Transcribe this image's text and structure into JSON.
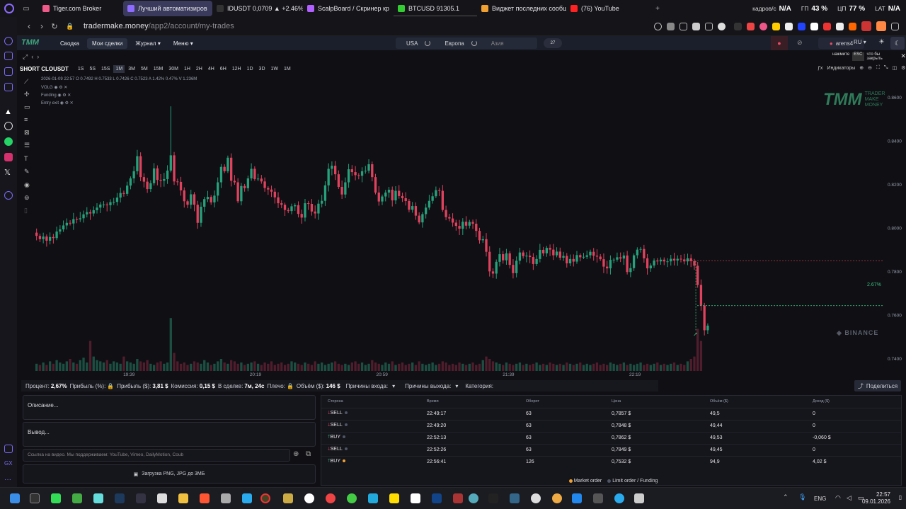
{
  "browser": {
    "tabs": [
      {
        "title": "Tiger.com Broker",
        "color": "#f05a8a"
      },
      {
        "title": "Лучший автоматизиров",
        "color": "#8e6bff",
        "active": true
      },
      {
        "title": "IDUSDT 0,0709 ▲ +2.46%",
        "color": "#2a2a2a"
      },
      {
        "title": "ScalpBoard / Скринер кр",
        "color": "#b060ff"
      },
      {
        "title": "BTCUSD 91305.1",
        "color": "#3c3"
      },
      {
        "title": "Виджет последних сообщ",
        "color": "#f0a030"
      },
      {
        "title": "(76) YouTube",
        "color": "#f22"
      }
    ],
    "stats": [
      {
        "label": "кадров/с",
        "value": "N/A"
      },
      {
        "label": "ГП",
        "value": "43 %"
      },
      {
        "label": "ЦП",
        "value": "77 %"
      },
      {
        "label": "LAT",
        "value": "N/A"
      }
    ],
    "url_host": "tradermake.money",
    "url_path": "/app2/account/my-trades"
  },
  "app": {
    "nav": [
      "Сводка",
      "Мои сделки",
      "Журнал",
      "Меню"
    ],
    "regions": [
      "USA",
      "Европа",
      "Азия"
    ],
    "badge": "27",
    "user": "arens4",
    "lang": "RU",
    "close_hint": [
      "нажмите",
      "ESC",
      "что бы закрыть"
    ]
  },
  "chart_toolbar": {
    "symbol": "SHORT CLOUSDT",
    "timeframes": [
      "1S",
      "5S",
      "15S",
      "1M",
      "3M",
      "5M",
      "15M",
      "30M",
      "1H",
      "2H",
      "4H",
      "6H",
      "12H",
      "1D",
      "3D",
      "1W",
      "1M"
    ],
    "selected": "1M",
    "indicators": "Индикаторы"
  },
  "chart_data": {
    "type": "candlestick",
    "ohlc_label": "2026-01-09 22:57 O 0.7492 H 0.7533 L 0.7426 C 0.7523 A 1.42% 0.47% V 1.236M",
    "overlays": [
      "VOLG",
      "Funding",
      "Entry exit"
    ],
    "y_ticks": [
      "0.8600",
      "0.8400",
      "0.8200",
      "0.8000",
      "0.7800",
      "0.7600",
      "0.7400"
    ],
    "ylim": [
      0.7306,
      0.871
    ],
    "x_ticks": [
      "19:39",
      "20:19",
      "20:59",
      "21:39",
      "22:19"
    ],
    "profit_label": "2.67%",
    "entry_price": 0.785,
    "exit_price": 0.7645,
    "watermark": "BINANCE",
    "brand": [
      "TRADER",
      "MAKE",
      "MONEY"
    ],
    "closes": [
      0.7965,
      0.795,
      0.7962,
      0.7943,
      0.796,
      0.7955,
      0.7985,
      0.7995,
      0.8013,
      0.8025,
      0.8022,
      0.8042,
      0.8041,
      0.8046,
      0.8064,
      0.8074,
      0.8068,
      0.8083,
      0.8095,
      0.8109,
      0.8109,
      0.8106,
      0.812,
      0.8121,
      0.8141,
      0.8162,
      0.8158,
      0.8196,
      0.8229,
      0.8262,
      0.8331,
      0.8235,
      0.8214,
      0.818,
      0.8207,
      0.8275,
      0.8222,
      0.8218,
      0.8226,
      0.8265,
      0.8335,
      0.8215,
      0.8213,
      0.8174,
      0.8124,
      0.8108,
      0.8156,
      0.8108,
      0.8025,
      0.8099,
      0.8134,
      0.8144,
      0.8119,
      0.815,
      0.8211,
      0.8282,
      0.8262,
      0.8324,
      0.8218,
      0.8211,
      0.8124,
      0.8194,
      0.8184,
      0.8229,
      0.8273,
      0.8226,
      0.8228,
      0.8215,
      0.8185,
      0.8178,
      0.8168,
      0.8142,
      0.8115,
      0.8108,
      0.8084,
      0.8079,
      0.8101,
      0.8106,
      0.8066,
      0.8049,
      0.8115,
      0.8112,
      0.8077,
      0.8068,
      0.8113,
      0.8126,
      0.8197,
      0.8273,
      0.8287,
      0.8248,
      0.819,
      0.8155,
      0.8211,
      0.8271,
      0.8258,
      0.8244,
      0.8241,
      0.8262,
      0.8264,
      0.8294,
      0.8235,
      0.8164,
      0.8123,
      0.8146,
      0.8164,
      0.8177,
      0.8128,
      0.8172,
      0.8148,
      0.8138,
      0.8125,
      0.8085,
      0.8102,
      0.8058,
      0.8027,
      0.8065,
      0.8095,
      0.8126,
      0.8147,
      0.8175,
      0.8172,
      0.8084,
      0.8051,
      0.8045,
      0.8026,
      0.8011,
      0.7998,
      0.803,
      0.8012,
      0.8029,
      0.8021,
      0.7988,
      0.7945,
      0.795,
      0.7892,
      0.7802,
      0.7792,
      0.7846,
      0.7881,
      0.7853,
      0.7885,
      0.7832,
      0.7794,
      0.7851,
      0.7889,
      0.7872,
      0.7874,
      0.7868,
      0.7836,
      0.7859,
      0.7901,
      0.7885,
      0.791,
      0.7902,
      0.7876,
      0.7893,
      0.7865,
      0.7873,
      0.7839,
      0.7859,
      0.7847,
      0.7877,
      0.7867,
      0.7869,
      0.7876,
      0.7892,
      0.7874,
      0.787,
      0.7858,
      0.7824,
      0.7816,
      0.7855,
      0.7856,
      0.7867,
      0.7861,
      0.7875,
      0.7799,
      0.7817,
      0.7876,
      0.7902,
      0.7905,
      0.7862,
      0.7816,
      0.7829,
      0.7852,
      0.7848,
      0.7856,
      0.7848,
      0.7848,
      0.786,
      0.7852,
      0.786,
      0.7857,
      0.7848,
      0.7862,
      0.7849,
      0.7828,
      0.774,
      0.7645,
      0.7532,
      0.7553
    ],
    "volumes": [
      0.06,
      0.05,
      0.07,
      0.05,
      0.08,
      0.06,
      0.09,
      0.07,
      0.06,
      0.08,
      0.1,
      0.07,
      0.06,
      0.09,
      0.11,
      0.07,
      0.25,
      0.12,
      0.09,
      0.08,
      0.07,
      0.09,
      0.06,
      0.08,
      0.07,
      0.06,
      0.12,
      0.08,
      0.07,
      0.06,
      0.1,
      0.08,
      0.07,
      0.09,
      0.06,
      0.05,
      0.07,
      0.08,
      0.06,
      0.07,
      0.44,
      0.15,
      0.08,
      0.06,
      0.07,
      0.05,
      0.06,
      0.08,
      0.07,
      0.06,
      0.09,
      0.07,
      0.05,
      0.06,
      0.08,
      0.1,
      0.07,
      0.06,
      0.09,
      0.08,
      0.06,
      0.07,
      0.05,
      0.06,
      0.07,
      0.08,
      0.06,
      0.05,
      0.07,
      0.06,
      0.08,
      0.05,
      0.06,
      0.07,
      0.05,
      0.06,
      0.08,
      0.07,
      0.06,
      0.05,
      0.07,
      0.06,
      0.05,
      0.08,
      0.06,
      0.07,
      0.05,
      0.06,
      0.07,
      0.08,
      0.06,
      0.05,
      0.06,
      0.05,
      0.07,
      0.08,
      0.06,
      0.07,
      0.05,
      0.06,
      0.09,
      0.07,
      0.06,
      0.05,
      0.07,
      0.06,
      0.08,
      0.05,
      0.06,
      0.07,
      0.05,
      0.06,
      0.07,
      0.05,
      0.08,
      0.06,
      0.05,
      0.06,
      0.07,
      0.05,
      0.06,
      0.08,
      0.07,
      0.05,
      0.06,
      0.05,
      0.07,
      0.06,
      0.05,
      0.06,
      0.07,
      0.05,
      0.06,
      0.09,
      0.12,
      0.1,
      0.08,
      0.07,
      0.06,
      0.05,
      0.07,
      0.06,
      0.05,
      0.06,
      0.07,
      0.05,
      0.06,
      0.05,
      0.06,
      0.07,
      0.05,
      0.06,
      0.05,
      0.07,
      0.06,
      0.05,
      0.06,
      0.05,
      0.07,
      0.06,
      0.05,
      0.06,
      0.07,
      0.05,
      0.06,
      0.05,
      0.06,
      0.07,
      0.05,
      0.06,
      0.05,
      0.07,
      0.06,
      0.05,
      0.06,
      0.07,
      0.05,
      0.06,
      0.05,
      0.06,
      0.07,
      0.05,
      0.06,
      0.05,
      0.06,
      0.07,
      0.05,
      0.06,
      0.05,
      0.06,
      0.07,
      0.05,
      0.06,
      0.05,
      0.08,
      0.1,
      0.12,
      0.35,
      0.25
    ]
  },
  "summary": {
    "items": [
      {
        "label": "Процент:",
        "value": "2,67%"
      },
      {
        "label": "Прибыль (%):",
        "value": "🔒"
      },
      {
        "label": "Прибыль ($):",
        "value": "3,81 $"
      },
      {
        "label": "Комиссия:",
        "value": "0,15 $"
      },
      {
        "label": "В сделке:",
        "value": "7м, 24с"
      },
      {
        "label": "Плечо:",
        "value": "🔒"
      },
      {
        "label": "Объём ($):",
        "value": "146 $"
      }
    ],
    "entry_reasons": "Причины входа:",
    "exit_reasons": "Причины выхода:",
    "category": "Категория:",
    "share": "Поделиться"
  },
  "notes": {
    "description": "Описание...",
    "conclusion": "Вывод...",
    "video_placeholder": "Ссылка на видео. Мы поддерживаем: YouTube, Vimeo, DailyMotion, Coub",
    "upload": "Загрузка PNG, JPG до 3МБ"
  },
  "trades": {
    "headers": [
      "Сторона",
      "Время",
      "Оборот",
      "Цена",
      "Объём ($)",
      "Доход ($)"
    ],
    "rows": [
      {
        "side": "SELL",
        "time": "22:49:17",
        "turnover": "63",
        "price": "0,7857 $",
        "volume": "49,5",
        "income": "0"
      },
      {
        "side": "SELL",
        "time": "22:49:20",
        "turnover": "63",
        "price": "0,7848 $",
        "volume": "49,44",
        "income": "0"
      },
      {
        "side": "BUY",
        "time": "22:52:13",
        "turnover": "63",
        "price": "0,7862 $",
        "volume": "49,53",
        "income": "-0,060 $"
      },
      {
        "side": "SELL",
        "time": "22:52:26",
        "turnover": "63",
        "price": "0,7849 $",
        "volume": "49,45",
        "income": "0"
      },
      {
        "side": "BUY",
        "time": "22:56:41",
        "turnover": "126",
        "price": "0,7532 $",
        "volume": "94,9",
        "income": "4,02 $"
      }
    ],
    "legend": [
      "Market order",
      "Limit order / Funding"
    ]
  },
  "taskbar": {
    "lang": "ENG",
    "time": "22:57",
    "date": "09.01.2026"
  }
}
